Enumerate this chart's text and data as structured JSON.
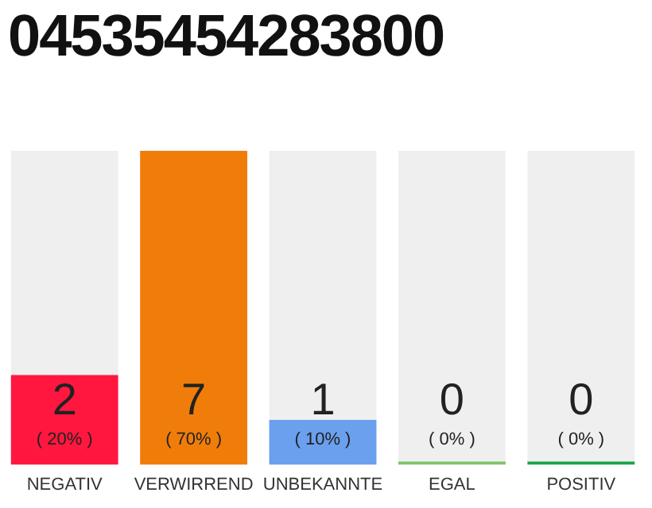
{
  "chart_data": {
    "type": "bar",
    "title": "04535454283800",
    "categories": [
      "NEGATIV",
      "VERWIRREND",
      "UNBEKANNTE",
      "EGAL",
      "POSITIV"
    ],
    "values": [
      2,
      7,
      1,
      0,
      0
    ],
    "value_labels": [
      "2\n( 20% )",
      "7\n( 70% )",
      "1\n( 10% )",
      "0\n( 0% )",
      "0\n( 0% )"
    ],
    "colors": [
      "#ff173f",
      "#f07d0a",
      "#6aa0ee",
      "#7bc46a",
      "#1aa34a"
    ],
    "ylim": [
      0,
      7
    ],
    "grid": false,
    "legend": false,
    "tick_labels": "x"
  }
}
